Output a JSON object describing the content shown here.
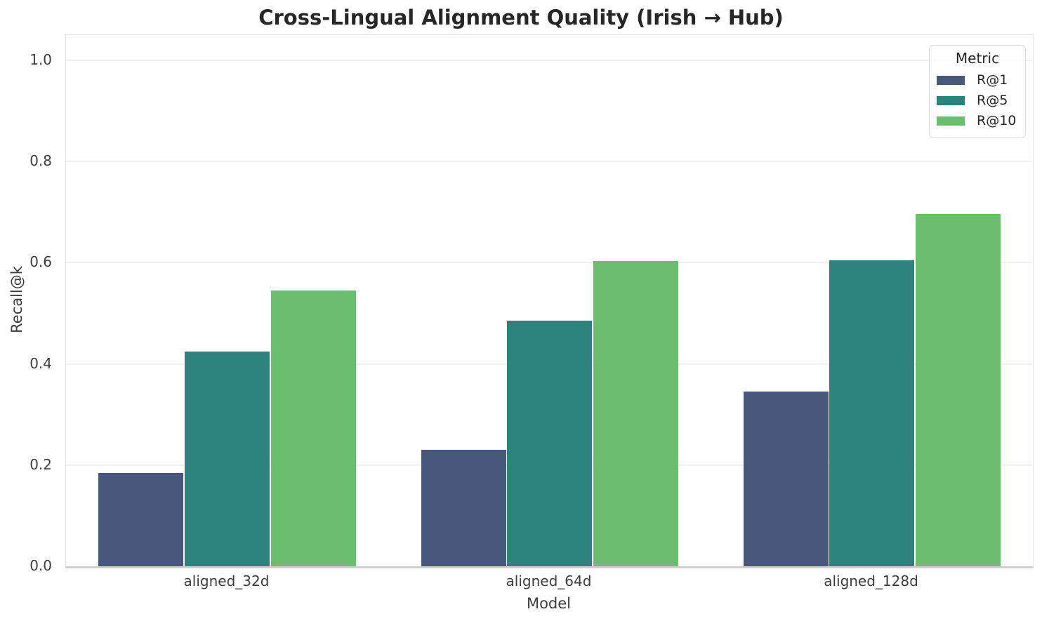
{
  "title": "Cross-Lingual Alignment Quality (Irish → Hub)",
  "chart_data": {
    "type": "bar",
    "title": "Cross-Lingual Alignment Quality (Irish → Hub)",
    "xlabel": "Model",
    "ylabel": "Recall@k",
    "categories": [
      "aligned_32d",
      "aligned_64d",
      "aligned_128d"
    ],
    "series": [
      {
        "name": "R@1",
        "color": "#48577c",
        "values": [
          0.185,
          0.23,
          0.345
        ]
      },
      {
        "name": "R@5",
        "color": "#2d827e",
        "values": [
          0.425,
          0.485,
          0.605
        ]
      },
      {
        "name": "R@10",
        "color": "#6abe6e",
        "values": [
          0.545,
          0.603,
          0.697
        ]
      }
    ],
    "ylim": [
      0,
      1.05
    ],
    "yticks": [
      0.0,
      0.2,
      0.4,
      0.6,
      0.8,
      1.0
    ],
    "grid": true,
    "legend": {
      "title": "Metric",
      "position": "upper right"
    }
  },
  "style": {
    "grid_color": "#f0f0f0",
    "spine_color": "#e4e4e4",
    "baseline_color": "#cfcfcf",
    "text_color": "#3d3d3d",
    "title_color": "#262626"
  }
}
